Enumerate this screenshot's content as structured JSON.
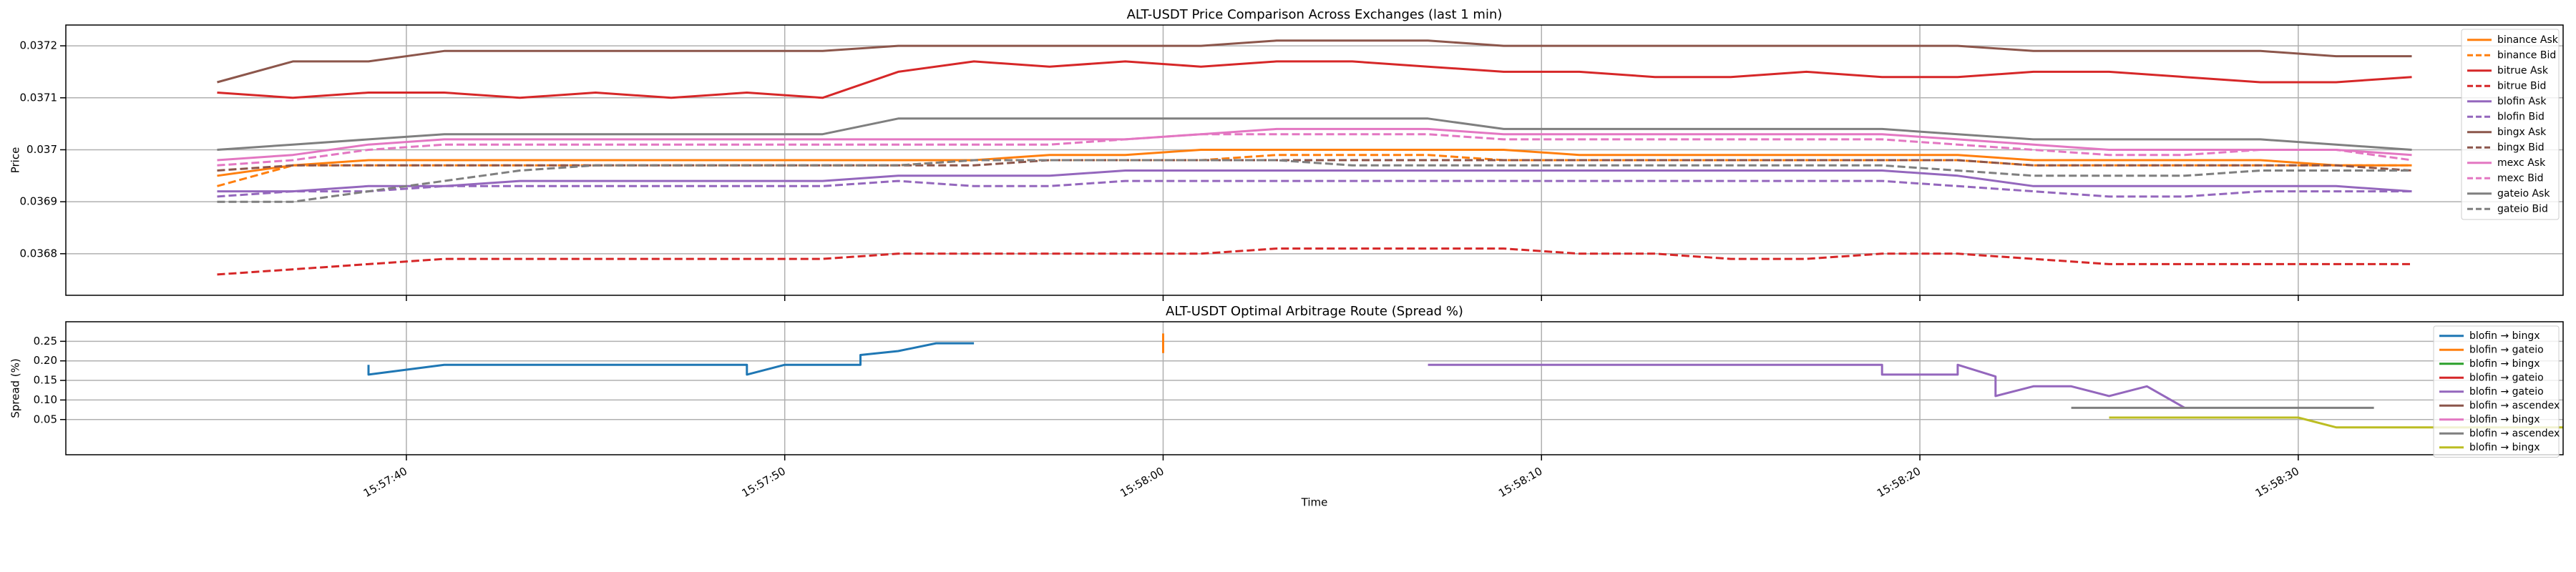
{
  "chart_data": [
    {
      "type": "line",
      "title": "ALT-USDT Price Comparison Across Exchanges (last 1 min)",
      "ylabel": "Price",
      "xlim": [
        "15:57:31",
        "15:58:37"
      ],
      "xticks": [
        "15:57:40",
        "15:57:50",
        "15:58:00",
        "15:58:10",
        "15:58:20",
        "15:58:30"
      ],
      "ylim": [
        0.03672,
        0.03724
      ],
      "yticks": [
        0.0368,
        0.0369,
        0.037,
        0.0371,
        0.0372
      ],
      "grid": true,
      "legend": "upper right",
      "x": [
        "15:57:35",
        "15:57:37",
        "15:57:39",
        "15:57:41",
        "15:57:43",
        "15:57:45",
        "15:57:47",
        "15:57:49",
        "15:57:51",
        "15:57:53",
        "15:57:55",
        "15:57:57",
        "15:57:59",
        "15:58:01",
        "15:58:03",
        "15:58:05",
        "15:58:07",
        "15:58:09",
        "15:58:11",
        "15:58:13",
        "15:58:15",
        "15:58:17",
        "15:58:19",
        "15:58:21",
        "15:58:23",
        "15:58:25",
        "15:58:27",
        "15:58:29",
        "15:58:31",
        "15:58:33"
      ],
      "series": [
        {
          "name": "binance Ask",
          "color": "#ff7f0e",
          "style": "solid",
          "values": [
            0.03695,
            0.03697,
            0.03698,
            0.03698,
            0.03698,
            0.03698,
            0.03698,
            0.03698,
            0.03698,
            0.03698,
            0.03698,
            0.03699,
            0.03699,
            0.037,
            0.037,
            0.037,
            0.037,
            0.037,
            0.03699,
            0.03699,
            0.03699,
            0.03699,
            0.03699,
            0.03699,
            0.03698,
            0.03698,
            0.03698,
            0.03698,
            0.03697,
            0.03697
          ]
        },
        {
          "name": "binance Bid",
          "color": "#ff7f0e",
          "style": "dashed",
          "values": [
            0.03693,
            0.03697,
            0.03697,
            0.03697,
            0.03697,
            0.03697,
            0.03697,
            0.03697,
            0.03697,
            0.03697,
            0.03698,
            0.03698,
            0.03698,
            0.03698,
            0.03699,
            0.03699,
            0.03699,
            0.03698,
            0.03698,
            0.03698,
            0.03698,
            0.03698,
            0.03698,
            0.03698,
            0.03697,
            0.03697,
            0.03697,
            0.03697,
            0.03697,
            0.03697
          ]
        },
        {
          "name": "bitrue Ask",
          "color": "#d62728",
          "style": "solid",
          "values": [
            0.03711,
            0.0371,
            0.03711,
            0.03711,
            0.0371,
            0.03711,
            0.0371,
            0.03711,
            0.0371,
            0.03715,
            0.03717,
            0.03716,
            0.03717,
            0.03716,
            0.03717,
            0.03717,
            0.03716,
            0.03715,
            0.03715,
            0.03714,
            0.03714,
            0.03715,
            0.03714,
            0.03714,
            0.03715,
            0.03715,
            0.03714,
            0.03713,
            0.03713,
            0.03714
          ]
        },
        {
          "name": "bitrue Bid",
          "color": "#d62728",
          "style": "dashed",
          "values": [
            0.03676,
            0.03677,
            0.03678,
            0.03679,
            0.03679,
            0.03679,
            0.03679,
            0.03679,
            0.03679,
            0.0368,
            0.0368,
            0.0368,
            0.0368,
            0.0368,
            0.03681,
            0.03681,
            0.03681,
            0.03681,
            0.0368,
            0.0368,
            0.03679,
            0.03679,
            0.0368,
            0.0368,
            0.03679,
            0.03678,
            0.03678,
            0.03678,
            0.03678,
            0.03678
          ]
        },
        {
          "name": "blofin Ask",
          "color": "#9467bd",
          "style": "solid",
          "values": [
            0.03692,
            0.03692,
            0.03693,
            0.03693,
            0.03694,
            0.03694,
            0.03694,
            0.03694,
            0.03694,
            0.03695,
            0.03695,
            0.03695,
            0.03696,
            0.03696,
            0.03696,
            0.03696,
            0.03696,
            0.03696,
            0.03696,
            0.03696,
            0.03696,
            0.03696,
            0.03696,
            0.03695,
            0.03693,
            0.03693,
            0.03693,
            0.03693,
            0.03693,
            0.03692
          ]
        },
        {
          "name": "blofin Bid",
          "color": "#9467bd",
          "style": "dashed",
          "values": [
            0.03691,
            0.03692,
            0.03692,
            0.03693,
            0.03693,
            0.03693,
            0.03693,
            0.03693,
            0.03693,
            0.03694,
            0.03693,
            0.03693,
            0.03694,
            0.03694,
            0.03694,
            0.03694,
            0.03694,
            0.03694,
            0.03694,
            0.03694,
            0.03694,
            0.03694,
            0.03694,
            0.03693,
            0.03692,
            0.03691,
            0.03691,
            0.03692,
            0.03692,
            0.03692
          ]
        },
        {
          "name": "bingx Ask",
          "color": "#8c564b",
          "style": "solid",
          "values": [
            0.03713,
            0.03717,
            0.03717,
            0.03719,
            0.03719,
            0.03719,
            0.03719,
            0.03719,
            0.03719,
            0.0372,
            0.0372,
            0.0372,
            0.0372,
            0.0372,
            0.03721,
            0.03721,
            0.03721,
            0.0372,
            0.0372,
            0.0372,
            0.0372,
            0.0372,
            0.0372,
            0.0372,
            0.03719,
            0.03719,
            0.03719,
            0.03719,
            0.03718,
            0.03718
          ]
        },
        {
          "name": "bingx Bid",
          "color": "#8c564b",
          "style": "dashed",
          "values": [
            0.03696,
            0.03697,
            0.03697,
            0.03697,
            0.03697,
            0.03697,
            0.03697,
            0.03697,
            0.03697,
            0.03697,
            0.03697,
            0.03698,
            0.03698,
            0.03698,
            0.03698,
            0.03698,
            0.03698,
            0.03698,
            0.03698,
            0.03698,
            0.03698,
            0.03698,
            0.03698,
            0.03698,
            0.03697,
            0.03697,
            0.03697,
            0.03697,
            0.03697,
            0.03696
          ]
        },
        {
          "name": "mexc Ask",
          "color": "#e377c2",
          "style": "solid",
          "values": [
            0.03698,
            0.03699,
            0.03701,
            0.03702,
            0.03702,
            0.03702,
            0.03702,
            0.03702,
            0.03702,
            0.03702,
            0.03702,
            0.03702,
            0.03702,
            0.03703,
            0.03704,
            0.03704,
            0.03704,
            0.03703,
            0.03703,
            0.03703,
            0.03703,
            0.03703,
            0.03703,
            0.03702,
            0.03701,
            0.037,
            0.037,
            0.037,
            0.037,
            0.03699
          ]
        },
        {
          "name": "mexc Bid",
          "color": "#e377c2",
          "style": "dashed",
          "values": [
            0.03697,
            0.03698,
            0.037,
            0.03701,
            0.03701,
            0.03701,
            0.03701,
            0.03701,
            0.03701,
            0.03701,
            0.03701,
            0.03701,
            0.03702,
            0.03703,
            0.03703,
            0.03703,
            0.03703,
            0.03702,
            0.03702,
            0.03702,
            0.03702,
            0.03702,
            0.03702,
            0.03701,
            0.037,
            0.03699,
            0.03699,
            0.037,
            0.037,
            0.03698
          ]
        },
        {
          "name": "gateio Ask",
          "color": "#7f7f7f",
          "style": "solid",
          "values": [
            0.037,
            0.03701,
            0.03702,
            0.03703,
            0.03703,
            0.03703,
            0.03703,
            0.03703,
            0.03703,
            0.03706,
            0.03706,
            0.03706,
            0.03706,
            0.03706,
            0.03706,
            0.03706,
            0.03706,
            0.03704,
            0.03704,
            0.03704,
            0.03704,
            0.03704,
            0.03704,
            0.03703,
            0.03702,
            0.03702,
            0.03702,
            0.03702,
            0.03701,
            0.037
          ]
        },
        {
          "name": "gateio Bid",
          "color": "#7f7f7f",
          "style": "dashed",
          "values": [
            0.0369,
            0.0369,
            0.03692,
            0.03694,
            0.03696,
            0.03697,
            0.03697,
            0.03697,
            0.03697,
            0.03697,
            0.03698,
            0.03698,
            0.03698,
            0.03698,
            0.03698,
            0.03697,
            0.03697,
            0.03697,
            0.03697,
            0.03697,
            0.03697,
            0.03697,
            0.03697,
            0.03696,
            0.03695,
            0.03695,
            0.03695,
            0.03696,
            0.03696,
            0.03696
          ]
        }
      ]
    },
    {
      "type": "line",
      "title": "ALT-USDT Optimal Arbitrage Route (Spread %)",
      "xlabel": "Time",
      "ylabel": "Spread (%)",
      "xlim": [
        "15:57:31",
        "15:58:37"
      ],
      "xticks": [
        "15:57:40",
        "15:57:50",
        "15:58:00",
        "15:58:10",
        "15:58:20",
        "15:58:30"
      ],
      "ylim": [
        -0.04,
        0.3
      ],
      "yticks": [
        0.05,
        {
          "value": 0.1,
          "label": "0.10"
        },
        0.15,
        {
          "value": 0.2,
          "label": "0.20"
        },
        0.25
      ],
      "grid": true,
      "legend": "upper right",
      "series": [
        {
          "name": "blofin → bingx",
          "color": "#1f77b4",
          "style": "solid",
          "x": [
            "15:57:39",
            "15:57:39",
            "15:57:41",
            "15:57:49",
            "15:57:49",
            "15:57:50",
            "15:57:52",
            "15:57:52",
            "15:57:53",
            "15:57:54",
            "15:57:55"
          ],
          "values": [
            0.19,
            0.165,
            0.19,
            0.19,
            0.165,
            0.19,
            0.19,
            0.215,
            0.225,
            0.245,
            0.245
          ]
        },
        {
          "name": "blofin → gateio",
          "color": "#ff7f0e",
          "style": "solid",
          "x": [
            "15:58:00",
            "15:58:00"
          ],
          "values": [
            0.27,
            0.22
          ]
        },
        {
          "name": "blofin → bingx",
          "color": "#2ca02c",
          "style": "solid",
          "x": [],
          "values": []
        },
        {
          "name": "blofin → gateio",
          "color": "#d62728",
          "style": "solid",
          "x": [],
          "values": []
        },
        {
          "name": "blofin → gateio",
          "color": "#9467bd",
          "style": "solid",
          "x": [
            "15:58:07",
            "15:58:19",
            "15:58:19",
            "15:58:21",
            "15:58:21",
            "15:58:22",
            "15:58:22",
            "15:58:23",
            "15:58:24",
            "15:58:25",
            "15:58:26",
            "15:58:27"
          ],
          "values": [
            0.19,
            0.19,
            0.165,
            0.165,
            0.19,
            0.16,
            0.11,
            0.135,
            0.135,
            0.11,
            0.135,
            0.08
          ]
        },
        {
          "name": "blofin → ascendex",
          "color": "#8c564b",
          "style": "solid",
          "x": [],
          "values": []
        },
        {
          "name": "blofin → bingx",
          "color": "#e377c2",
          "style": "solid",
          "x": [],
          "values": []
        },
        {
          "name": "blofin → ascendex",
          "color": "#7f7f7f",
          "style": "solid",
          "x": [
            "15:58:24",
            "15:58:32"
          ],
          "values": [
            0.08,
            0.08
          ]
        },
        {
          "name": "blofin → bingx",
          "color": "#bcbd22",
          "style": "solid",
          "x": [
            "15:58:25",
            "15:58:30",
            "15:58:31",
            "15:58:37"
          ],
          "values": [
            0.055,
            0.055,
            0.03,
            0.03
          ]
        }
      ]
    }
  ]
}
